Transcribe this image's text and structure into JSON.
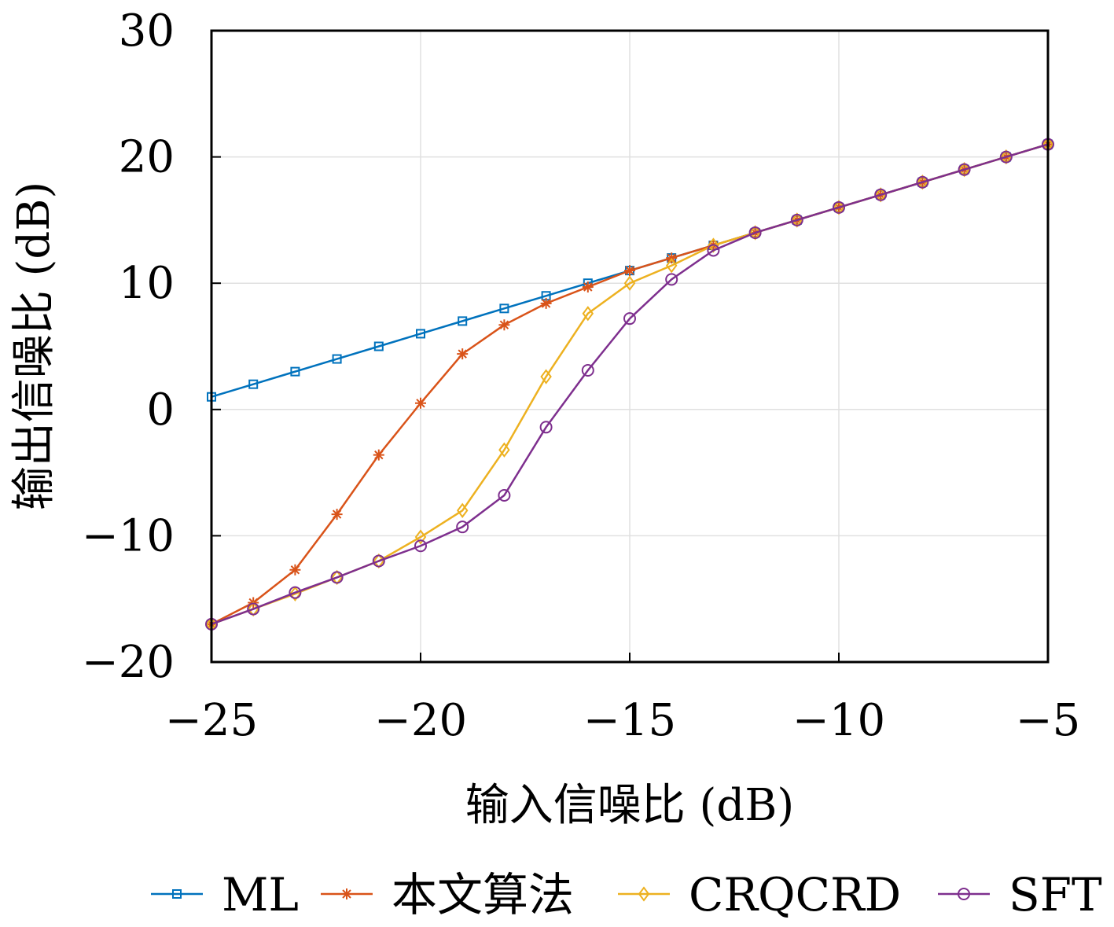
{
  "chart_data": {
    "type": "line",
    "xlabel": "输入信噪比 (dB)",
    "ylabel": "输出信噪比 (dB)",
    "xlim": [
      -25,
      -5
    ],
    "ylim": [
      -20,
      30
    ],
    "xticks": [
      "−25",
      "−20",
      "−15",
      "−10",
      "−5"
    ],
    "yticks": [
      "−20",
      "−10",
      "0",
      "10",
      "20",
      "30"
    ],
    "xtick_values": [
      -25,
      -20,
      -15,
      -10,
      -5
    ],
    "ytick_values": [
      -20,
      -10,
      0,
      10,
      20,
      30
    ],
    "grid": true,
    "legend_placement": "bottom",
    "x": [
      -25,
      -24,
      -23,
      -22,
      -21,
      -20,
      -19,
      -18,
      -17,
      -16,
      -15,
      -14,
      -13,
      -12,
      -11,
      -10,
      -9,
      -8,
      -7,
      -6,
      -5
    ],
    "series": [
      {
        "name": "ML",
        "color": "#0072BD",
        "marker": "square",
        "values": [
          1,
          2,
          3,
          4,
          5,
          6,
          7,
          8,
          9,
          10,
          11,
          12,
          13,
          14,
          15,
          16,
          17,
          18,
          19,
          20,
          21
        ]
      },
      {
        "name": "本文算法",
        "color": "#D95319",
        "marker": "asterisk",
        "values": [
          -17,
          -15.3,
          -12.7,
          -8.3,
          -3.6,
          0.5,
          4.4,
          6.7,
          8.4,
          9.7,
          11,
          12,
          13,
          14,
          15,
          16,
          17,
          18,
          19,
          20,
          21
        ]
      },
      {
        "name": "CRQCRD",
        "color": "#EDB120",
        "marker": "diamond",
        "values": [
          -17,
          -15.8,
          -14.6,
          -13.3,
          -12,
          -10.1,
          -8,
          -3.2,
          2.6,
          7.6,
          10,
          11.4,
          13,
          14,
          15,
          16,
          17,
          18,
          19,
          20,
          21
        ]
      },
      {
        "name": "SFT",
        "color": "#7E2F8E",
        "marker": "circle",
        "values": [
          -17,
          -15.8,
          -14.5,
          -13.3,
          -12,
          -10.8,
          -9.3,
          -6.8,
          -1.4,
          3.1,
          7.2,
          10.3,
          12.6,
          14,
          15,
          16,
          17,
          18,
          19,
          20,
          21
        ]
      }
    ]
  }
}
